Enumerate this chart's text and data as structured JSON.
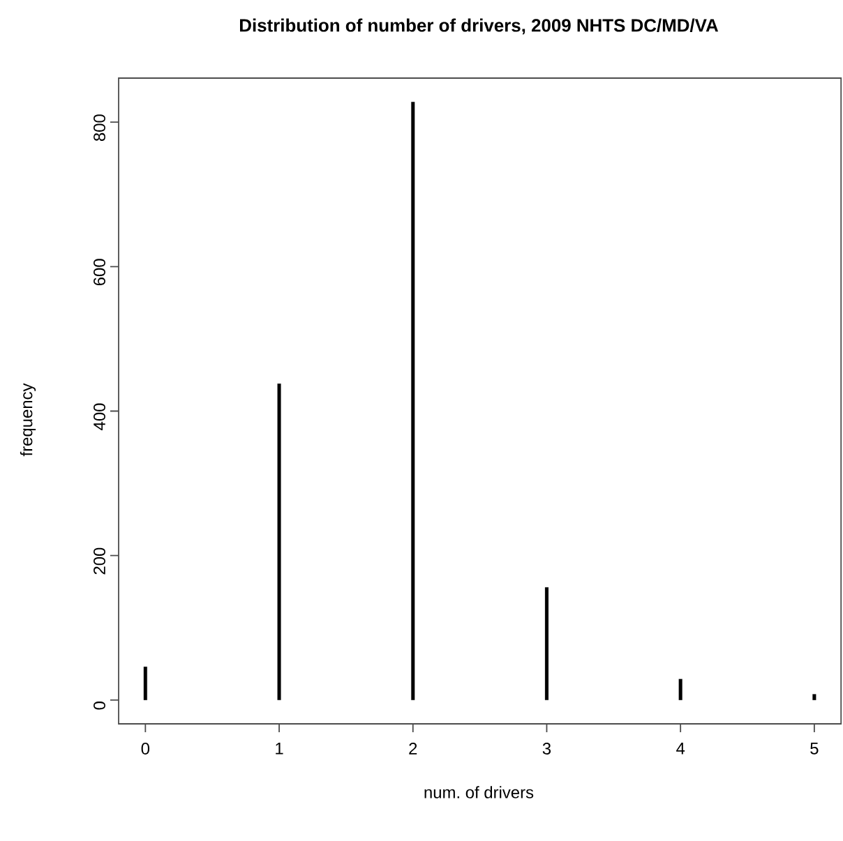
{
  "chart_data": {
    "type": "bar",
    "title": "Distribution of number of drivers, 2009 NHTS DC/MD/VA",
    "xlabel": "num. of drivers",
    "ylabel": "frequency",
    "x": [
      0,
      1,
      2,
      3,
      4,
      5
    ],
    "values": [
      46,
      438,
      828,
      156,
      29,
      8
    ],
    "color": "#000000",
    "xlim": [
      -0.2,
      5.2
    ],
    "ylim": [
      -33,
      861
    ],
    "xticks": [
      0,
      1,
      2,
      3,
      4,
      5
    ],
    "yticks": [
      0,
      200,
      400,
      600,
      800
    ]
  }
}
